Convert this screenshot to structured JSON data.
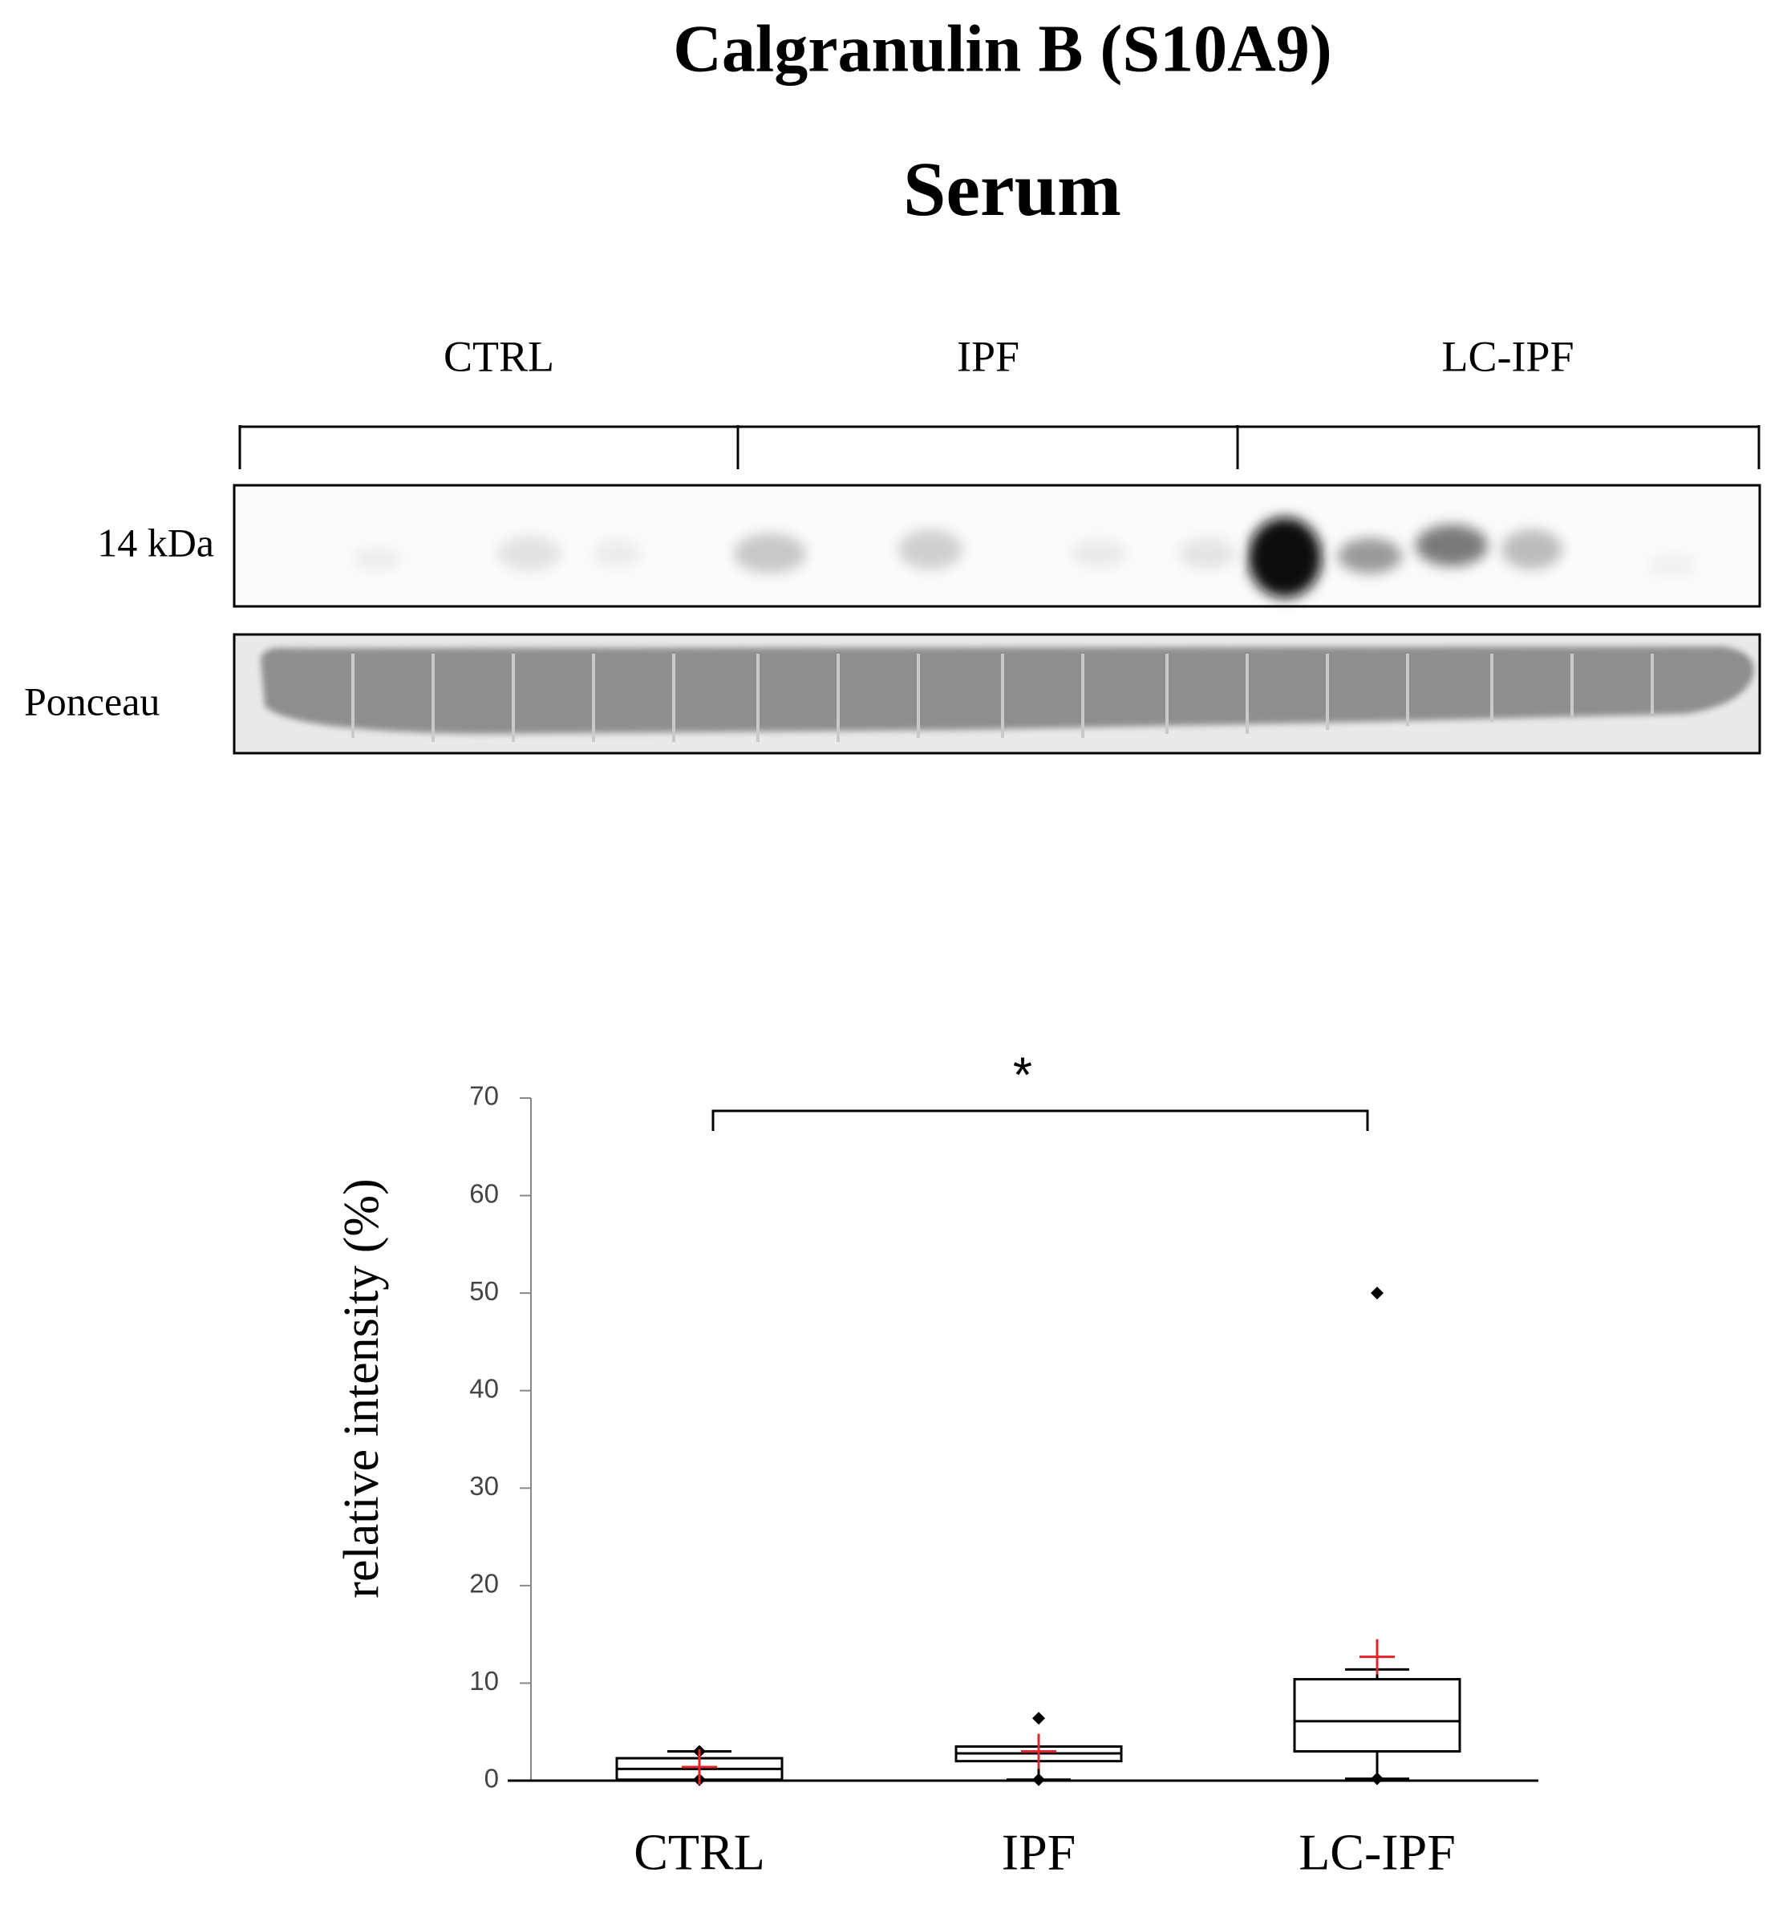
{
  "title": "Calgranulin B (S10A9)",
  "subtitle": "Serum",
  "blot": {
    "groups": [
      "CTRL",
      "IPF",
      "LC-IPF"
    ],
    "marker": "14 kDa",
    "loading_control": "Ponceau"
  },
  "chart_data": {
    "type": "box",
    "categories": [
      "CTRL",
      "IPF",
      "LC-IPF"
    ],
    "y_label": "relative intensity  (%)",
    "ylim": [
      0,
      70
    ],
    "yticks": [
      0,
      10,
      20,
      30,
      40,
      50,
      60,
      70
    ],
    "boxes": [
      {
        "q1": 0.1,
        "median": 1.2,
        "q3": 2.3,
        "whisker_low": 0.1,
        "whisker_high": 3.0,
        "min": 0.1,
        "max": 3.0,
        "mean": 1.4
      },
      {
        "q1": 2.0,
        "median": 2.8,
        "q3": 3.5,
        "whisker_low": 0.1,
        "whisker_high": 3.5,
        "min": 0.1,
        "max": 6.4,
        "mean": 3.0
      },
      {
        "q1": 3.0,
        "median": 6.1,
        "q3": 10.4,
        "whisker_low": 0.2,
        "whisker_high": 11.4,
        "min": 0.2,
        "max": 50,
        "mean": 12.7
      }
    ],
    "box_color": "#000000",
    "mean_color": "#e0262b",
    "significance": {
      "label": "*"
    }
  }
}
